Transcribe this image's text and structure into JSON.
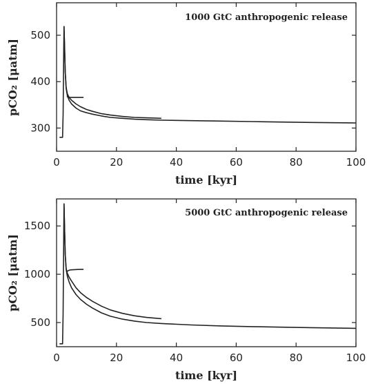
{
  "chart_data": [
    {
      "type": "line",
      "annotation": "1000 GtC anthropogenic release",
      "xlabel": "time [kyr]",
      "ylabel": "pCO₂ [μatm]",
      "xlim": [
        0,
        100
      ],
      "ylim": [
        250,
        570
      ],
      "xticks": [
        0,
        20,
        40,
        60,
        80,
        100
      ],
      "yticks": [
        300,
        400,
        500
      ],
      "grid": false,
      "series": [
        {
          "x": [
            1.0,
            2.0,
            2.2,
            2.4,
            2.5,
            2.7,
            2.9,
            3.2,
            3.6,
            4.2,
            5.0,
            6.5,
            8.0,
            10,
            12,
            15,
            18,
            22,
            26,
            30,
            35,
            45,
            55,
            65,
            75,
            85,
            100
          ],
          "y": [
            280,
            280,
            330,
            470,
            519,
            470,
            420,
            385,
            370,
            360,
            352,
            343,
            337,
            333,
            330,
            326,
            323,
            321,
            319,
            318,
            317,
            316,
            315,
            314,
            313,
            312,
            311
          ]
        },
        {
          "x": [
            2.5,
            2.7,
            2.9,
            3.2,
            3.6,
            4.2,
            5.0,
            6.5,
            8.0,
            10,
            12,
            15,
            18,
            22,
            26,
            30,
            35
          ],
          "y": [
            519,
            470,
            420,
            388,
            374,
            366,
            360,
            352,
            346,
            340,
            336,
            331,
            328,
            325,
            323,
            322,
            321
          ]
        },
        {
          "x": [
            3.4,
            4.5,
            6.0,
            7.5,
            9.0
          ],
          "y": [
            368,
            366,
            366,
            366,
            366
          ]
        }
      ]
    },
    {
      "type": "line",
      "annotation": "5000 GtC anthropogenic release",
      "xlabel": "time [kyr]",
      "ylabel": "pCO₂ [μatm]",
      "xlim": [
        0,
        100
      ],
      "ylim": [
        250,
        1780
      ],
      "xticks": [
        0,
        20,
        40,
        60,
        80,
        100
      ],
      "yticks": [
        500,
        1000,
        1500
      ],
      "grid": false,
      "series": [
        {
          "x": [
            1.0,
            2.0,
            2.2,
            2.4,
            2.5,
            2.7,
            2.9,
            3.2,
            3.6,
            4.2,
            5.0,
            6.5,
            8.0,
            10,
            12,
            15,
            18,
            22,
            26,
            30,
            35,
            45,
            55,
            65,
            75,
            85,
            100
          ],
          "y": [
            280,
            280,
            600,
            1400,
            1730,
            1450,
            1200,
            1050,
            980,
            920,
            860,
            790,
            740,
            690,
            650,
            600,
            565,
            535,
            515,
            500,
            490,
            475,
            465,
            458,
            452,
            447,
            440
          ]
        },
        {
          "x": [
            2.5,
            2.7,
            2.9,
            3.2,
            3.6,
            4.2,
            5.0,
            6.5,
            8.0,
            10,
            12,
            15,
            18,
            22,
            26,
            30,
            35
          ],
          "y": [
            1730,
            1450,
            1200,
            1060,
            1010,
            970,
            930,
            860,
            810,
            760,
            720,
            670,
            630,
            595,
            570,
            553,
            540
          ]
        },
        {
          "x": [
            3.4,
            4.5,
            6.0,
            7.5,
            9.0
          ],
          "y": [
            1030,
            1045,
            1048,
            1050,
            1050
          ]
        }
      ]
    }
  ]
}
